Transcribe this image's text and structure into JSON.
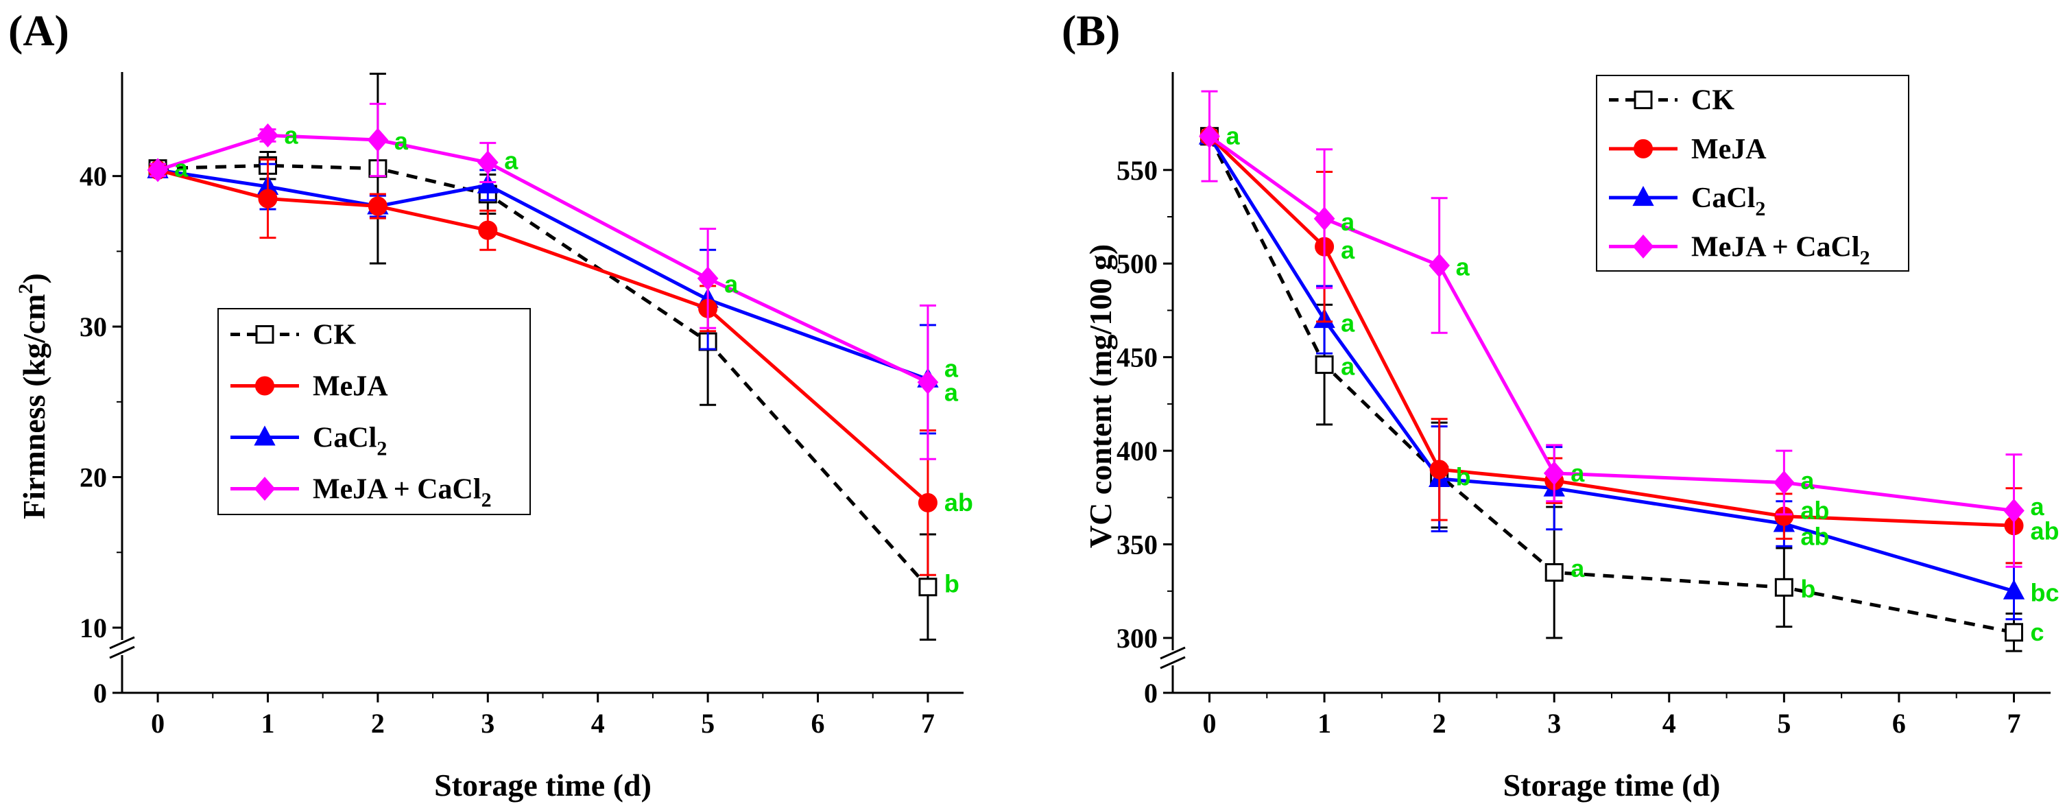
{
  "figure": {
    "colors": {
      "CK": "#000000",
      "MeJA": "#ff0000",
      "CaCl2": "#0000ff",
      "MeJA_CaCl2": "#ff00ff",
      "letters": "#00dd00"
    }
  },
  "chart_data": [
    {
      "panel_label": "(A)",
      "type": "line",
      "xlabel": "Storage time (d)",
      "ylabel_main": "Firmness (kg/cm",
      "ylabel_sup": "2",
      "ylabel_close": ")",
      "x": [
        0,
        1,
        2,
        3,
        5,
        7
      ],
      "xticks": [
        0,
        1,
        2,
        3,
        4,
        5,
        6,
        7
      ],
      "xtick_labels": [
        "0",
        "1",
        "2",
        "3",
        "4",
        "5",
        "6",
        "7"
      ],
      "xlim": [
        -0.2,
        7.2
      ],
      "yticks": [
        10,
        20,
        30,
        40
      ],
      "ytick_labels": [
        "10",
        "20",
        "30",
        "40"
      ],
      "ylim": [
        10,
        46
      ],
      "ybreak_zero_label": "0",
      "legend_position": "center-left",
      "series": [
        {
          "key": "CK",
          "name": "CK",
          "values": [
            40.5,
            40.7,
            40.5,
            38.8,
            29.0,
            12.7
          ],
          "errors": [
            0.4,
            0.9,
            6.3,
            1.3,
            4.2,
            3.5
          ],
          "marker": "open-square",
          "dashed": true
        },
        {
          "key": "MeJA",
          "name": "MeJA",
          "values": [
            40.4,
            38.5,
            38.0,
            36.4,
            31.2,
            18.3
          ],
          "errors": [
            0.4,
            2.6,
            0.8,
            1.3,
            1.5,
            4.8
          ],
          "marker": "circle",
          "dashed": false
        },
        {
          "key": "CaCl2",
          "name": "CaCl",
          "name_sub": "2",
          "values": [
            40.4,
            39.3,
            38.0,
            39.4,
            31.8,
            26.5
          ],
          "errors": [
            0.4,
            1.5,
            0.7,
            1.0,
            3.3,
            3.6
          ],
          "marker": "triangle",
          "dashed": false
        },
        {
          "key": "MeJA_CaCl2",
          "name": "MeJA + CaCl",
          "name_sub": "2",
          "values": [
            40.4,
            42.7,
            42.4,
            40.9,
            33.2,
            26.3
          ],
          "errors": [
            0.4,
            0.4,
            2.4,
            1.3,
            3.3,
            5.1
          ],
          "marker": "diamond",
          "dashed": false
        }
      ],
      "letters": [
        {
          "x": 0,
          "y": 40.5,
          "text": "a"
        },
        {
          "x": 1,
          "y": 42.7,
          "text": "a"
        },
        {
          "x": 2,
          "y": 42.3,
          "text": "a"
        },
        {
          "x": 3,
          "y": 41.0,
          "text": "a"
        },
        {
          "x": 5,
          "y": 32.8,
          "text": "a"
        },
        {
          "x": 7,
          "y": 27.2,
          "text": "a"
        },
        {
          "x": 7,
          "y": 25.6,
          "text": "a"
        },
        {
          "x": 7,
          "y": 18.3,
          "text": "ab"
        },
        {
          "x": 7,
          "y": 12.9,
          "text": "b"
        }
      ]
    },
    {
      "panel_label": "(B)",
      "type": "line",
      "xlabel": "Storage time (d)",
      "ylabel_main": "VC content (mg/100 g)",
      "x": [
        0,
        1,
        2,
        3,
        5,
        7
      ],
      "xticks": [
        0,
        1,
        2,
        3,
        4,
        5,
        6,
        7
      ],
      "xtick_labels": [
        "0",
        "1",
        "2",
        "3",
        "4",
        "5",
        "6",
        "7"
      ],
      "xlim": [
        -0.2,
        7.2
      ],
      "yticks": [
        300,
        350,
        400,
        450,
        500,
        550
      ],
      "ytick_labels": [
        "300",
        "350",
        "400",
        "450",
        "500",
        "550"
      ],
      "ylim": [
        300,
        595
      ],
      "ybreak_zero_label": "0",
      "legend_position": "top-right",
      "series": [
        {
          "key": "CK",
          "name": "CK",
          "values": [
            568,
            446,
            387,
            335,
            327,
            303
          ],
          "errors": [
            3,
            32,
            28,
            35,
            21,
            10
          ],
          "marker": "open-square",
          "dashed": true
        },
        {
          "key": "MeJA",
          "name": "MeJA",
          "values": [
            568,
            509,
            390,
            384,
            365,
            360
          ],
          "errors": [
            3,
            40,
            27,
            12,
            12,
            20
          ],
          "marker": "circle",
          "dashed": false
        },
        {
          "key": "CaCl2",
          "name": "CaCl",
          "name_sub": "2",
          "values": [
            568,
            470,
            385,
            380,
            361,
            325
          ],
          "errors": [
            3,
            18,
            28,
            22,
            12,
            15
          ],
          "marker": "triangle",
          "dashed": false
        },
        {
          "key": "MeJA_CaCl2",
          "name": "MeJA + CaCl",
          "name_sub": "2",
          "values": [
            568,
            524,
            499,
            388,
            383,
            368
          ],
          "errors": [
            24,
            37,
            36,
            15,
            17,
            30
          ],
          "marker": "diamond",
          "dashed": false
        }
      ],
      "letters": [
        {
          "x": 0,
          "y": 568,
          "text": "a"
        },
        {
          "x": 1,
          "y": 522,
          "text": "a"
        },
        {
          "x": 1,
          "y": 507,
          "text": "a"
        },
        {
          "x": 1,
          "y": 468,
          "text": "a"
        },
        {
          "x": 1,
          "y": 445,
          "text": "a"
        },
        {
          "x": 2,
          "y": 498,
          "text": "a"
        },
        {
          "x": 2,
          "y": 386,
          "text": "b"
        },
        {
          "x": 3,
          "y": 388,
          "text": "a"
        },
        {
          "x": 3,
          "y": 337,
          "text": "a"
        },
        {
          "x": 5,
          "y": 384,
          "text": "a"
        },
        {
          "x": 5,
          "y": 368,
          "text": "ab"
        },
        {
          "x": 5,
          "y": 354,
          "text": "ab"
        },
        {
          "x": 5,
          "y": 326,
          "text": "b"
        },
        {
          "x": 7,
          "y": 370,
          "text": "a"
        },
        {
          "x": 7,
          "y": 357,
          "text": "ab"
        },
        {
          "x": 7,
          "y": 324,
          "text": "bc"
        },
        {
          "x": 7,
          "y": 303,
          "text": "c"
        }
      ]
    }
  ]
}
